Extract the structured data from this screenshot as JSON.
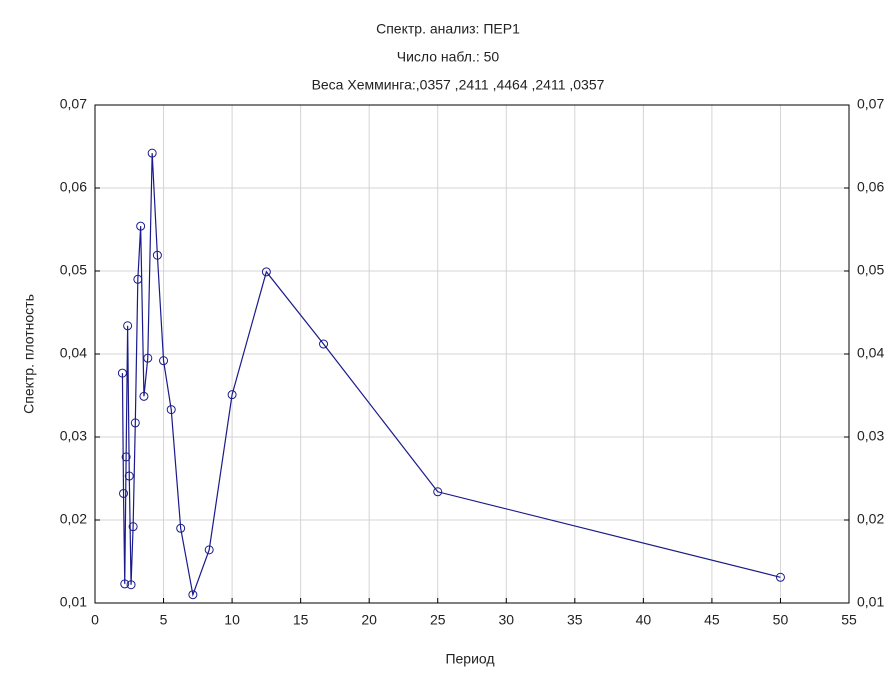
{
  "chart_data": {
    "type": "line",
    "title": "Спектр. анализ: ПЕР1",
    "subtitle": "Число набл.: 50",
    "annotation": "Веса Хемминга:,0357 ,2411 ,4464 ,2411 ,0357",
    "x_label": "Период",
    "y_label": "Спектр. плотность",
    "x": [
      50,
      25,
      16.67,
      12.5,
      10,
      8.33,
      7.14,
      6.25,
      5.56,
      5,
      4.55,
      4.17,
      3.85,
      3.57,
      3.33,
      3.125,
      2.94,
      2.78,
      2.63,
      2.5,
      2.38,
      2.27,
      2.17,
      2.08,
      2.0
    ],
    "series": [
      {
        "name": "ПЕР1",
        "color": "#1a1a8c",
        "values": [
          0.0131,
          0.0234,
          0.0412,
          0.0499,
          0.0351,
          0.0164,
          0.011,
          0.019,
          0.0333,
          0.0392,
          0.0519,
          0.0642,
          0.0395,
          0.0349,
          0.0554,
          0.049,
          0.0317,
          0.0192,
          0.0122,
          0.0253,
          0.0434,
          0.0276,
          0.0123,
          0.0232,
          0.0377
        ]
      }
    ],
    "xlim": [
      0,
      55
    ],
    "xticks": [
      0,
      5,
      10,
      15,
      20,
      25,
      30,
      35,
      40,
      45,
      50,
      55
    ],
    "ylim": [
      0.01,
      0.07
    ],
    "yticks": [
      {
        "value": 0.01,
        "label": "0,01"
      },
      {
        "value": 0.02,
        "label": "0,02"
      },
      {
        "value": 0.03,
        "label": "0,03"
      },
      {
        "value": 0.04,
        "label": "0,04"
      },
      {
        "value": 0.05,
        "label": "0,05"
      },
      {
        "value": 0.06,
        "label": "0,06"
      },
      {
        "value": 0.07,
        "label": "0,07"
      }
    ],
    "grid": true
  }
}
